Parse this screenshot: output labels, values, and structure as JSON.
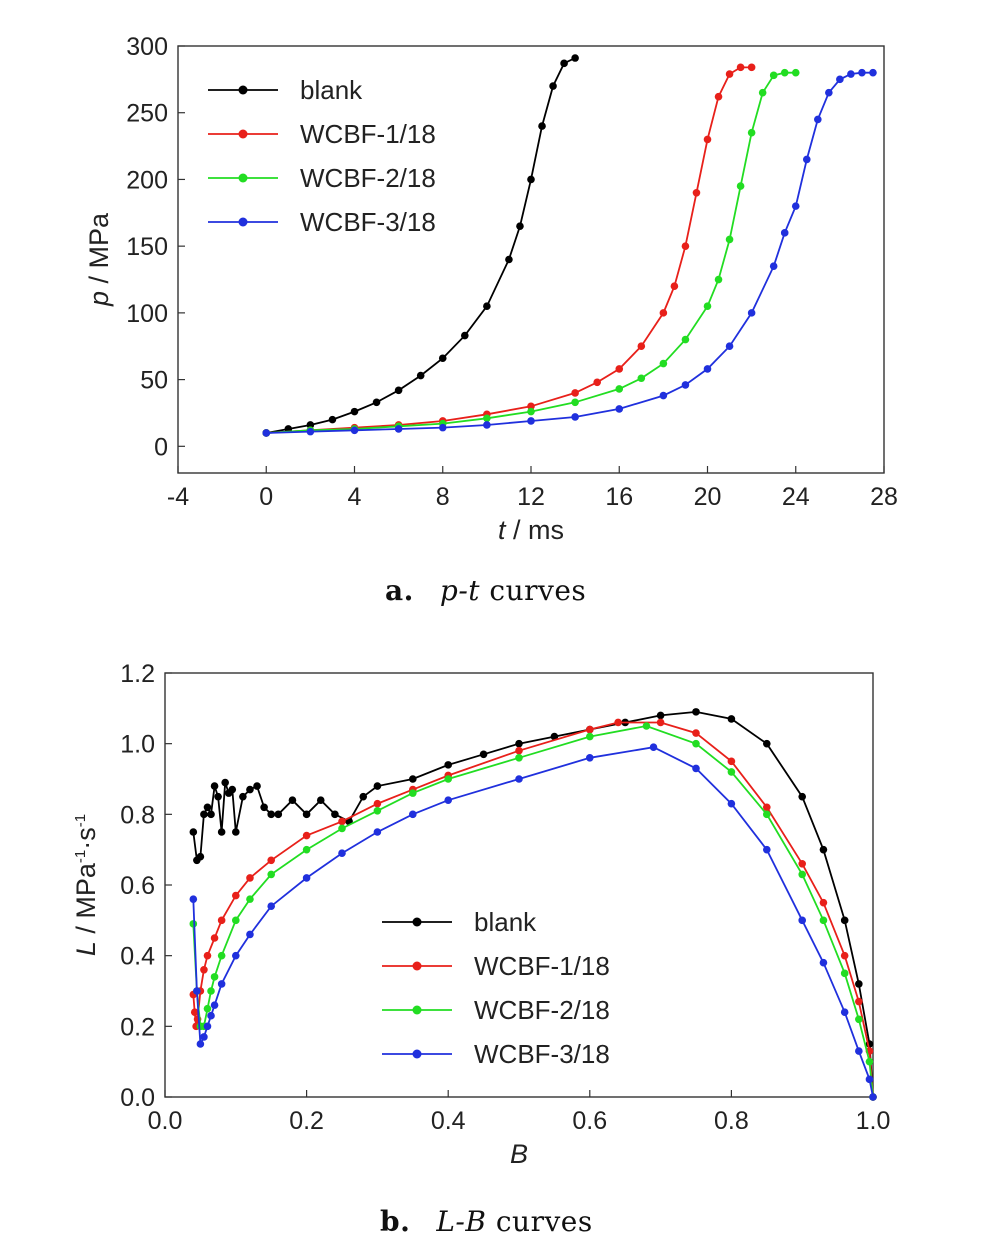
{
  "figure": {
    "panel_a": {
      "letter": "a.",
      "caption_var": "p-t",
      "caption_rest": " curves"
    },
    "panel_b": {
      "letter": "b.",
      "caption_var": "L-B",
      "caption_rest": " curves"
    }
  },
  "chart_data": [
    {
      "type": "line",
      "title": "",
      "xlabel": {
        "var": "t",
        "unit": " / ms"
      },
      "ylabel": {
        "var": "p",
        "unit": " / MPa"
      },
      "xlim": [
        -4,
        28
      ],
      "ylim": [
        -20,
        300
      ],
      "xticks": [
        -4,
        0,
        4,
        8,
        12,
        16,
        20,
        24,
        28
      ],
      "yticks": [
        0,
        50,
        100,
        150,
        200,
        250,
        300
      ],
      "grid": false,
      "legend_position": "top-left",
      "markers": true,
      "series": [
        {
          "name": "blank",
          "color": "#000000",
          "x": [
            0,
            1,
            2,
            3,
            4,
            5,
            6,
            7,
            8,
            9,
            10,
            11,
            11.5,
            12,
            12.5,
            13,
            13.5,
            14
          ],
          "y": [
            10,
            13,
            16,
            20,
            26,
            33,
            42,
            53,
            66,
            83,
            105,
            140,
            165,
            200,
            240,
            270,
            287,
            291
          ]
        },
        {
          "name": "WCBF-1/18",
          "color": "#e8201a",
          "x": [
            0,
            2,
            4,
            6,
            8,
            10,
            12,
            14,
            15,
            16,
            17,
            18,
            18.5,
            19,
            19.5,
            20,
            20.5,
            21,
            21.5,
            22
          ],
          "y": [
            10,
            12,
            14,
            16,
            19,
            24,
            30,
            40,
            48,
            58,
            75,
            100,
            120,
            150,
            190,
            230,
            262,
            279,
            284,
            284
          ]
        },
        {
          "name": "WCBF-2/18",
          "color": "#22dd22",
          "x": [
            0,
            2,
            4,
            6,
            8,
            10,
            12,
            14,
            16,
            17,
            18,
            19,
            20,
            20.5,
            21,
            21.5,
            22,
            22.5,
            23,
            23.5,
            24
          ],
          "y": [
            10,
            12,
            13,
            15,
            17,
            21,
            26,
            33,
            43,
            51,
            62,
            80,
            105,
            125,
            155,
            195,
            235,
            265,
            278,
            280,
            280
          ]
        },
        {
          "name": "WCBF-3/18",
          "color": "#2030dd",
          "x": [
            0,
            2,
            4,
            6,
            8,
            10,
            12,
            14,
            16,
            18,
            19,
            20,
            21,
            22,
            23,
            23.5,
            24,
            24.5,
            25,
            25.5,
            26,
            26.5,
            27,
            27.5
          ],
          "y": [
            10,
            11,
            12,
            13,
            14,
            16,
            19,
            22,
            28,
            38,
            46,
            58,
            75,
            100,
            135,
            160,
            180,
            215,
            245,
            265,
            275,
            279,
            280,
            280
          ]
        }
      ]
    },
    {
      "type": "line",
      "title": "",
      "xlabel": {
        "var": "B",
        "unit": ""
      },
      "ylabel": {
        "var": "L",
        "unit": " / MPa",
        "sup1": "-1",
        "mid": "·s",
        "sup2": "-1"
      },
      "xlim": [
        0,
        1.0
      ],
      "ylim": [
        0,
        1.2
      ],
      "xticks": [
        0.0,
        0.2,
        0.4,
        0.6,
        0.8,
        1.0
      ],
      "yticks": [
        0.0,
        0.2,
        0.4,
        0.6,
        0.8,
        1.0,
        1.2
      ],
      "tick_decimals": 1,
      "grid": false,
      "legend_position": "bottom-center",
      "markers": true,
      "series": [
        {
          "name": "blank",
          "color": "#000000",
          "x": [
            0.04,
            0.045,
            0.05,
            0.055,
            0.06,
            0.065,
            0.07,
            0.075,
            0.08,
            0.085,
            0.09,
            0.095,
            0.1,
            0.11,
            0.12,
            0.13,
            0.14,
            0.15,
            0.16,
            0.18,
            0.2,
            0.22,
            0.24,
            0.26,
            0.28,
            0.3,
            0.35,
            0.4,
            0.45,
            0.5,
            0.55,
            0.6,
            0.65,
            0.7,
            0.75,
            0.8,
            0.85,
            0.9,
            0.93,
            0.96,
            0.98,
            0.995,
            1.0
          ],
          "y": [
            0.75,
            0.67,
            0.68,
            0.8,
            0.82,
            0.8,
            0.88,
            0.85,
            0.75,
            0.89,
            0.86,
            0.87,
            0.75,
            0.85,
            0.87,
            0.88,
            0.82,
            0.8,
            0.8,
            0.84,
            0.8,
            0.84,
            0.8,
            0.78,
            0.85,
            0.88,
            0.9,
            0.94,
            0.97,
            1.0,
            1.02,
            1.04,
            1.06,
            1.08,
            1.09,
            1.07,
            1.0,
            0.85,
            0.7,
            0.5,
            0.32,
            0.15,
            0.0
          ]
        },
        {
          "name": "WCBF-1/18",
          "color": "#e8201a",
          "x": [
            0.04,
            0.042,
            0.044,
            0.046,
            0.05,
            0.055,
            0.06,
            0.07,
            0.08,
            0.1,
            0.12,
            0.15,
            0.2,
            0.25,
            0.3,
            0.35,
            0.4,
            0.5,
            0.6,
            0.64,
            0.7,
            0.75,
            0.8,
            0.85,
            0.9,
            0.93,
            0.96,
            0.98,
            0.995,
            1.0
          ],
          "y": [
            0.29,
            0.24,
            0.2,
            0.22,
            0.3,
            0.36,
            0.4,
            0.45,
            0.5,
            0.57,
            0.62,
            0.67,
            0.74,
            0.78,
            0.83,
            0.87,
            0.91,
            0.98,
            1.04,
            1.06,
            1.06,
            1.03,
            0.95,
            0.82,
            0.66,
            0.55,
            0.4,
            0.27,
            0.13,
            0.0
          ]
        },
        {
          "name": "WCBF-2/18",
          "color": "#22dd22",
          "x": [
            0.04,
            0.045,
            0.05,
            0.055,
            0.06,
            0.065,
            0.07,
            0.08,
            0.1,
            0.12,
            0.15,
            0.2,
            0.25,
            0.3,
            0.35,
            0.4,
            0.5,
            0.6,
            0.68,
            0.75,
            0.8,
            0.85,
            0.9,
            0.93,
            0.96,
            0.98,
            0.995,
            1.0
          ],
          "y": [
            0.49,
            0.3,
            0.2,
            0.2,
            0.25,
            0.3,
            0.34,
            0.4,
            0.5,
            0.56,
            0.63,
            0.7,
            0.76,
            0.81,
            0.86,
            0.9,
            0.96,
            1.02,
            1.05,
            1.0,
            0.92,
            0.8,
            0.63,
            0.5,
            0.35,
            0.22,
            0.1,
            0.0
          ]
        },
        {
          "name": "WCBF-3/18",
          "color": "#2030dd",
          "x": [
            0.04,
            0.045,
            0.05,
            0.055,
            0.06,
            0.065,
            0.07,
            0.08,
            0.1,
            0.12,
            0.15,
            0.2,
            0.25,
            0.3,
            0.35,
            0.4,
            0.5,
            0.6,
            0.69,
            0.75,
            0.8,
            0.85,
            0.9,
            0.93,
            0.96,
            0.98,
            0.995,
            1.0
          ],
          "y": [
            0.56,
            0.3,
            0.15,
            0.17,
            0.2,
            0.23,
            0.26,
            0.32,
            0.4,
            0.46,
            0.54,
            0.62,
            0.69,
            0.75,
            0.8,
            0.84,
            0.9,
            0.96,
            0.99,
            0.93,
            0.83,
            0.7,
            0.5,
            0.38,
            0.24,
            0.13,
            0.05,
            0.0
          ]
        }
      ]
    }
  ]
}
